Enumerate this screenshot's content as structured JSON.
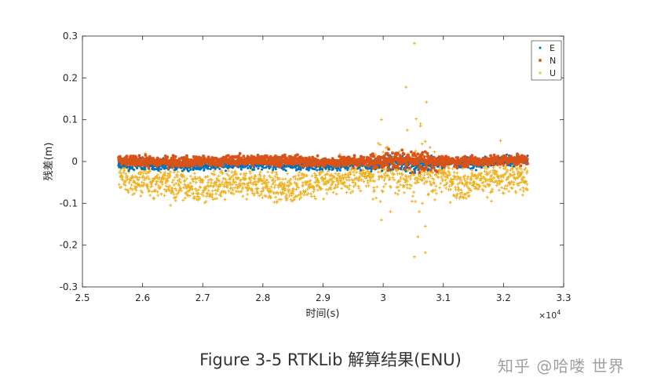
{
  "caption": "Figure 3-5 RTKLib 解算结果(ENU)",
  "watermark": "知乎 @哈喽 世界",
  "chart_data": {
    "type": "scatter",
    "xlabel": "时间(s)",
    "ylabel": "残差(m)",
    "x_multiplier": "×10",
    "x_multiplier_exp": "4",
    "xlim": [
      2.5,
      3.3
    ],
    "ylim": [
      -0.3,
      0.3
    ],
    "xticks": [
      "2.5",
      "2.6",
      "2.7",
      "2.8",
      "2.9",
      "3",
      "3.1",
      "3.2",
      "3.3"
    ],
    "yticks": [
      "-0.3",
      "-0.2",
      "-0.1",
      "0",
      "0.1",
      "0.2",
      "0.3"
    ],
    "x_range_data": [
      2.56,
      3.24
    ],
    "legend_position": "top-right",
    "series": [
      {
        "name": "E",
        "color": "#0072BD",
        "marker": "dot",
        "trend": [
          [
            2.56,
            -0.005
          ],
          [
            2.6,
            -0.008
          ],
          [
            2.65,
            -0.01
          ],
          [
            2.7,
            -0.01
          ],
          [
            2.75,
            -0.008
          ],
          [
            2.8,
            -0.006
          ],
          [
            2.85,
            -0.01
          ],
          [
            2.9,
            -0.01
          ],
          [
            2.95,
            -0.005
          ],
          [
            3.0,
            -0.003
          ],
          [
            3.05,
            -0.005
          ],
          [
            3.1,
            -0.002
          ],
          [
            3.15,
            -0.003
          ],
          [
            3.2,
            0.002
          ],
          [
            3.24,
            0.003
          ]
        ],
        "spread": 0.006
      },
      {
        "name": "N",
        "color": "#D95319",
        "marker": "star",
        "trend": [
          [
            2.56,
            0.002
          ],
          [
            2.6,
            0.0
          ],
          [
            2.65,
            0.0
          ],
          [
            2.7,
            0.0
          ],
          [
            2.75,
            0.002
          ],
          [
            2.8,
            0.004
          ],
          [
            2.85,
            0.002
          ],
          [
            2.9,
            -0.002
          ],
          [
            2.95,
            0.0
          ],
          [
            3.0,
            0.002
          ],
          [
            3.05,
            0.003
          ],
          [
            3.1,
            0.0
          ],
          [
            3.15,
            0.001
          ],
          [
            3.2,
            0.003
          ],
          [
            3.24,
            0.004
          ]
        ],
        "spread": 0.006
      },
      {
        "name": "U",
        "color": "#EDB120",
        "marker": "plus",
        "trend": [
          [
            2.56,
            -0.03
          ],
          [
            2.58,
            -0.045
          ],
          [
            2.6,
            -0.05
          ],
          [
            2.63,
            -0.05
          ],
          [
            2.66,
            -0.055
          ],
          [
            2.69,
            -0.065
          ],
          [
            2.72,
            -0.06
          ],
          [
            2.75,
            -0.06
          ],
          [
            2.78,
            -0.05
          ],
          [
            2.81,
            -0.06
          ],
          [
            2.84,
            -0.065
          ],
          [
            2.87,
            -0.055
          ],
          [
            2.9,
            -0.045
          ],
          [
            2.93,
            -0.04
          ],
          [
            2.96,
            -0.035
          ],
          [
            2.99,
            -0.025
          ],
          [
            3.02,
            -0.02
          ],
          [
            3.05,
            -0.025
          ],
          [
            3.08,
            -0.035
          ],
          [
            3.11,
            -0.04
          ],
          [
            3.14,
            -0.06
          ],
          [
            3.17,
            -0.04
          ],
          [
            3.2,
            -0.04
          ],
          [
            3.24,
            -0.04
          ]
        ],
        "spread": 0.018,
        "outliers": [
          [
            3.052,
            0.283
          ],
          [
            3.038,
            0.178
          ],
          [
            3.072,
            0.142
          ],
          [
            3.055,
            0.102
          ],
          [
            2.997,
            0.1
          ],
          [
            3.062,
            0.085
          ],
          [
            3.04,
            0.075
          ],
          [
            3.07,
            0.048
          ],
          [
            2.995,
            0.04
          ],
          [
            3.065,
            -0.1
          ],
          [
            3.06,
            -0.12
          ],
          [
            2.997,
            -0.14
          ],
          [
            3.07,
            -0.155
          ],
          [
            3.058,
            -0.18
          ],
          [
            3.07,
            -0.218
          ],
          [
            3.052,
            -0.228
          ],
          [
            3.012,
            -0.12
          ],
          [
            2.998,
            -0.07
          ],
          [
            3.075,
            -0.08
          ],
          [
            3.18,
            -0.095
          ],
          [
            3.195,
            0.05
          ],
          [
            3.048,
            -0.095
          ],
          [
            3.062,
            0.09
          ],
          [
            2.983,
            -0.09
          ]
        ]
      }
    ]
  }
}
